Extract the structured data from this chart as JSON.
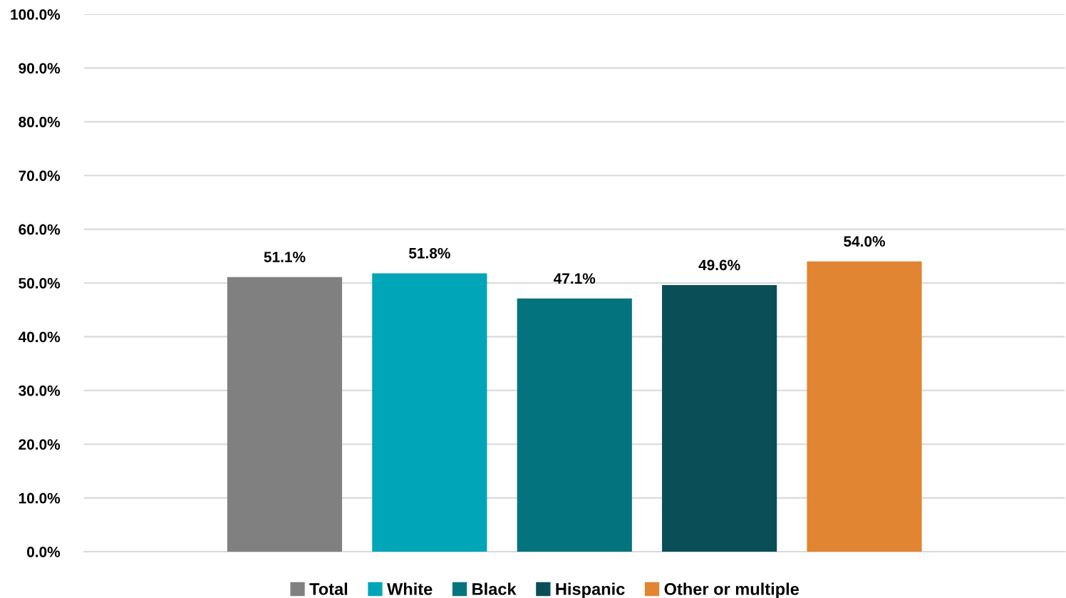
{
  "chart_data": {
    "type": "bar",
    "categories": [
      null
    ],
    "series": [
      {
        "name": "Total",
        "color": "#808080",
        "values": [
          51.1
        ],
        "value_labels": [
          "51.1%"
        ]
      },
      {
        "name": "White",
        "color": "#00a5b8",
        "values": [
          51.8
        ],
        "value_labels": [
          "51.8%"
        ]
      },
      {
        "name": "Black",
        "color": "#03737e",
        "values": [
          47.1
        ],
        "value_labels": [
          "47.1%"
        ]
      },
      {
        "name": "Hispanic",
        "color": "#0a4e57",
        "values": [
          49.6
        ],
        "value_labels": [
          "49.6%"
        ]
      },
      {
        "name": "Other or multiple",
        "color": "#e18532",
        "values": [
          54.0
        ],
        "value_labels": [
          "54.0%"
        ]
      }
    ],
    "ylim": [
      0,
      100
    ],
    "yticks": [
      {
        "value": 0,
        "label": "0.0%"
      },
      {
        "value": 10,
        "label": "10.0%"
      },
      {
        "value": 20,
        "label": "20.0%"
      },
      {
        "value": 30,
        "label": "30.0%"
      },
      {
        "value": 40,
        "label": "40.0%"
      },
      {
        "value": 50,
        "label": "50.0%"
      },
      {
        "value": 60,
        "label": "60.0%"
      },
      {
        "value": 70,
        "label": "70.0%"
      },
      {
        "value": 80,
        "label": "80.0%"
      },
      {
        "value": 90,
        "label": "90.0%"
      },
      {
        "value": 100,
        "label": "100.0%"
      }
    ],
    "grid": "y",
    "legend": "bottom"
  }
}
